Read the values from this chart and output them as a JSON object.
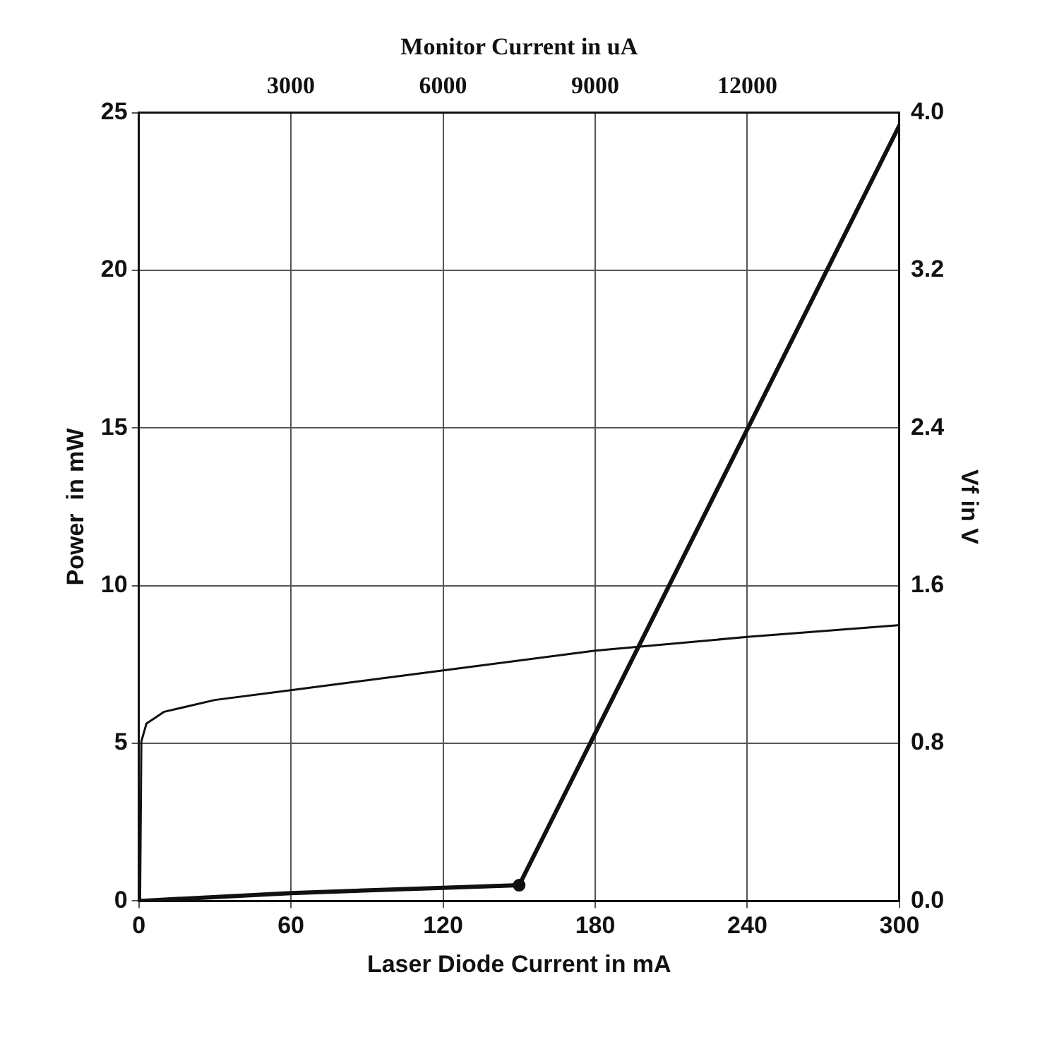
{
  "chart_data": {
    "type": "line",
    "xlabel": "Laser Diode Current in mA",
    "ylabel": "Power  in mW",
    "y2label": "Vf in V",
    "x2label": "Monitor Current in uA",
    "xlim": [
      0,
      300
    ],
    "xticks": [
      0,
      60,
      120,
      180,
      240,
      300
    ],
    "ylim": [
      0,
      25
    ],
    "yticks": [
      0,
      5,
      10,
      15,
      20,
      25
    ],
    "y2lim": [
      0,
      4
    ],
    "y2ticks": [
      {
        "value": 0,
        "label": "0.0"
      },
      {
        "value": 0.8,
        "label": "0.8"
      },
      {
        "value": 1.6,
        "label": "1.6"
      },
      {
        "value": 2.4,
        "label": "2.4"
      },
      {
        "value": 3.2,
        "label": "3.2"
      },
      {
        "value": 4,
        "label": "4.0"
      }
    ],
    "x2lim": [
      0,
      15000
    ],
    "x2ticks": [
      3000,
      6000,
      9000,
      12000
    ],
    "grid": true,
    "legend": false,
    "series": [
      {
        "type": "line",
        "color": "#111111",
        "x": [
          0,
          60,
          120,
          150,
          300
        ],
        "values": [
          0,
          0.25,
          0.42,
          0.5,
          24.6
        ],
        "marker": "none"
      },
      {
        "type": "scatter",
        "color": "#111111",
        "x": [
          150
        ],
        "values": [
          0.5
        ],
        "marker": "circle"
      },
      {
        "type": "line",
        "axis": "y2",
        "color": "#111111",
        "x": [
          0,
          0.5,
          1,
          3,
          10,
          30,
          60,
          120,
          180,
          240,
          300
        ],
        "values": [
          0,
          0,
          0.81,
          0.9,
          0.96,
          1.02,
          1.07,
          1.17,
          1.27,
          1.34,
          1.4
        ],
        "marker": "none"
      }
    ]
  }
}
